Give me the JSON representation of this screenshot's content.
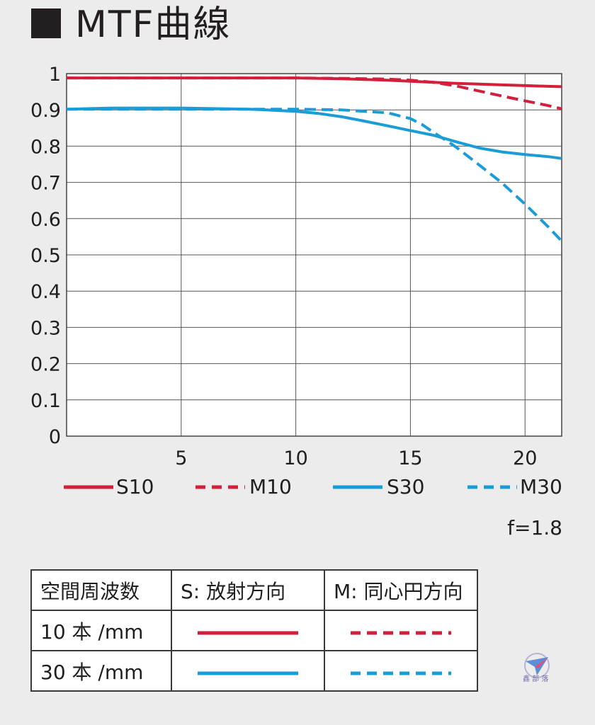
{
  "header": {
    "title": "MTF曲線"
  },
  "chart_data": {
    "type": "line",
    "title": "MTF曲線",
    "xlabel": "",
    "ylabel": "",
    "xlim": [
      0,
      21.6
    ],
    "ylim": [
      0,
      1
    ],
    "x_ticks": [
      5,
      10,
      15,
      20
    ],
    "y_ticks": [
      "0",
      "0.1",
      "0.2",
      "0.3",
      "0.4",
      "0.5",
      "0.6",
      "0.7",
      "0.8",
      "0.9",
      "1"
    ],
    "grid": true,
    "legend_position": "bottom",
    "series": [
      {
        "name": "S10",
        "color": "#d21f3b",
        "dash": false,
        "x": [
          0,
          5,
          10,
          12,
          14,
          15,
          16,
          17,
          18,
          19,
          20,
          21,
          21.6
        ],
        "y": [
          0.988,
          0.988,
          0.988,
          0.986,
          0.982,
          0.979,
          0.976,
          0.973,
          0.971,
          0.969,
          0.967,
          0.965,
          0.964
        ]
      },
      {
        "name": "M10",
        "color": "#d21f3b",
        "dash": true,
        "x": [
          0,
          5,
          10,
          12,
          14,
          15,
          16,
          17,
          18,
          19,
          20,
          21,
          21.6
        ],
        "y": [
          0.988,
          0.988,
          0.988,
          0.987,
          0.985,
          0.982,
          0.976,
          0.966,
          0.952,
          0.938,
          0.925,
          0.912,
          0.903
        ]
      },
      {
        "name": "S30",
        "color": "#1a9cd8",
        "dash": false,
        "x": [
          0,
          2,
          5,
          8,
          10,
          11,
          12,
          13,
          14,
          15,
          16,
          17,
          18,
          19,
          20,
          21,
          21.6
        ],
        "y": [
          0.902,
          0.905,
          0.905,
          0.902,
          0.896,
          0.89,
          0.881,
          0.869,
          0.856,
          0.843,
          0.83,
          0.812,
          0.795,
          0.784,
          0.777,
          0.771,
          0.766
        ]
      },
      {
        "name": "M30",
        "color": "#1a9cd8",
        "dash": true,
        "x": [
          0,
          5,
          8,
          10,
          12,
          14,
          15,
          15.5,
          16,
          16.5,
          17,
          18,
          19,
          20,
          21,
          21.6
        ],
        "y": [
          0.902,
          0.902,
          0.902,
          0.902,
          0.9,
          0.892,
          0.876,
          0.86,
          0.838,
          0.818,
          0.797,
          0.748,
          0.698,
          0.64,
          0.578,
          0.538
        ]
      }
    ],
    "aperture": "f=1.8"
  },
  "table": {
    "headers": [
      "空間周波数",
      "S: 放射方向",
      "M: 同心円方向"
    ],
    "rows": [
      {
        "label": "10 本 /mm",
        "color": "#d21f3b"
      },
      {
        "label": "30 本 /mm",
        "color": "#1a9cd8"
      }
    ]
  },
  "watermark": {
    "text": "鑫 部 落",
    "icon": "paper-plane-icon"
  }
}
